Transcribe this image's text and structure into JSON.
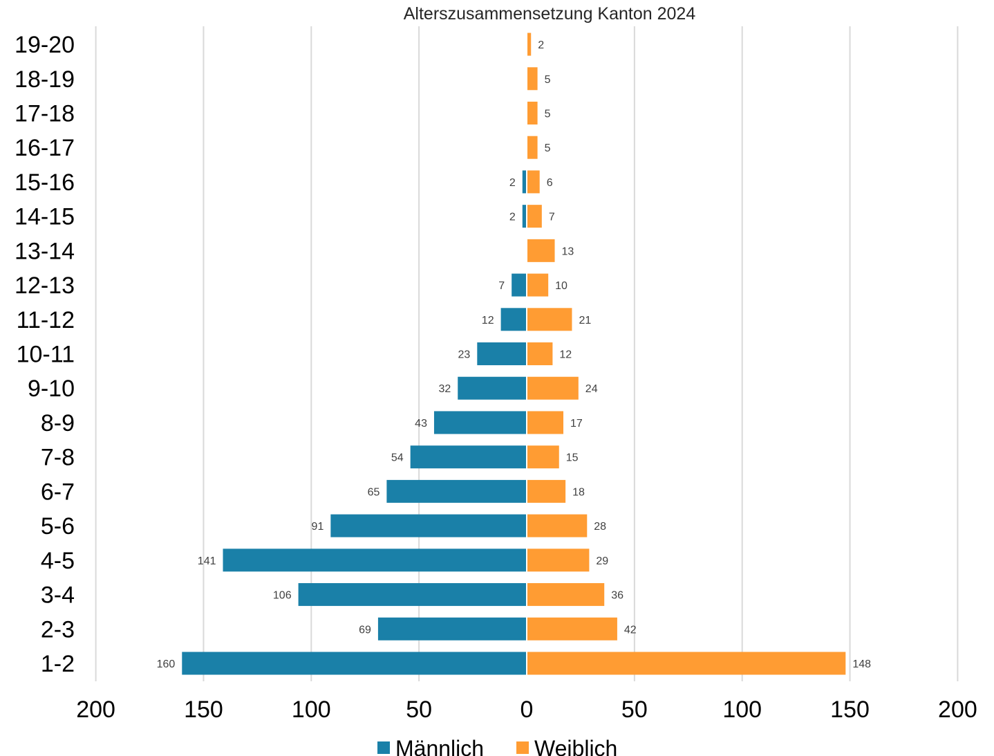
{
  "chart_data": {
    "type": "bar",
    "orientation": "horizontal",
    "title": "Alterszusammensetzung Kanton 2024",
    "categories": [
      "1-2",
      "2-3",
      "3-4",
      "4-5",
      "5-6",
      "6-7",
      "7-8",
      "8-9",
      "9-10",
      "10-11",
      "11-12",
      "12-13",
      "13-14",
      "14-15",
      "15-16",
      "16-17",
      "17-18",
      "18-19",
      "19-20"
    ],
    "series": [
      {
        "name": "Männlich",
        "color": "#1a80a8",
        "side": "left",
        "values": [
          160,
          69,
          106,
          141,
          91,
          65,
          54,
          43,
          32,
          23,
          12,
          7,
          0,
          2,
          2,
          0,
          0,
          0,
          0
        ]
      },
      {
        "name": "Weiblich",
        "color": "#ff9c33",
        "side": "right",
        "values": [
          148,
          42,
          36,
          29,
          28,
          18,
          15,
          17,
          24,
          12,
          21,
          10,
          13,
          7,
          6,
          5,
          5,
          5,
          2
        ]
      }
    ],
    "xlim": [
      -200,
      200
    ],
    "xticks": [
      -200,
      -150,
      -100,
      -50,
      0,
      50,
      100,
      150,
      200
    ],
    "xtick_labels": [
      "200",
      "150",
      "100",
      "50",
      "0",
      "50",
      "100",
      "150",
      "200"
    ],
    "grid": true,
    "legend": "bottom"
  }
}
